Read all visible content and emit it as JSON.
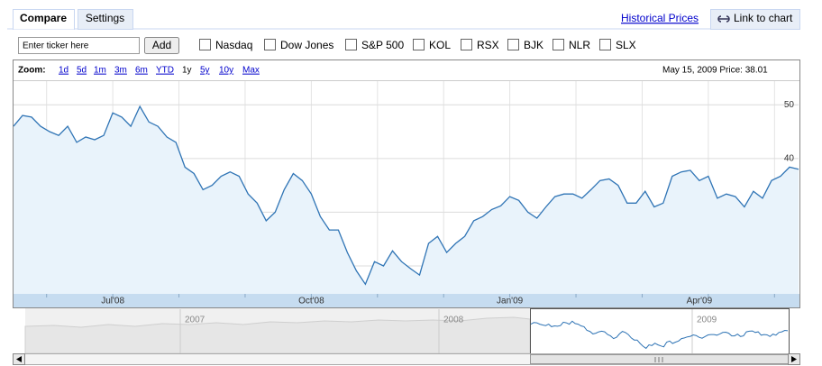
{
  "tabs": [
    "Compare",
    "Settings"
  ],
  "links": {
    "historical": "Historical Prices",
    "link_to_chart": "Link to chart"
  },
  "ticker_input": {
    "placeholder": "Enter ticker here",
    "button": "Add"
  },
  "compare_options": [
    "Nasdaq",
    "Dow Jones",
    "S&P 500",
    "KOL",
    "RSX",
    "BJK",
    "NLR",
    "SLX"
  ],
  "zoom": {
    "label": "Zoom:",
    "options": [
      "1d",
      "5d",
      "1m",
      "3m",
      "6m",
      "YTD",
      "1y",
      "5y",
      "10y",
      "Max"
    ]
  },
  "status": "May 15, 2009 Price: 38.01",
  "navigator": {
    "labels": [
      "2007",
      "2008",
      "2009"
    ]
  },
  "chart_data": {
    "type": "line",
    "categories": [
      null,
      null,
      null,
      null,
      null,
      null,
      null,
      null,
      null,
      null,
      null,
      "Jul'08",
      null,
      null,
      null,
      null,
      null,
      null,
      null,
      null,
      null,
      null,
      null,
      null,
      null,
      null,
      null,
      null,
      null,
      null,
      null,
      null,
      null,
      "Oct'08",
      null,
      null,
      null,
      null,
      null,
      null,
      null,
      null,
      null,
      null,
      null,
      null,
      null,
      null,
      null,
      null,
      null,
      null,
      null,
      null,
      null,
      "Jan'09",
      null,
      null,
      null,
      null,
      null,
      null,
      null,
      null,
      null,
      null,
      null,
      null,
      null,
      null,
      null,
      null,
      null,
      null,
      null,
      null,
      "Apr'09",
      null,
      null,
      null,
      null,
      null,
      null,
      null,
      null,
      null,
      null,
      null
    ],
    "values": [
      46,
      48,
      47.7,
      46,
      45,
      44.3,
      46,
      43,
      44,
      43.5,
      44.3,
      48.5,
      47.7,
      46,
      49.7,
      46.8,
      46,
      44,
      43,
      38.4,
      37.2,
      34.2,
      35,
      36.7,
      37.5,
      36.7,
      33.4,
      31.7,
      28.4,
      30,
      34.2,
      37.2,
      35.9,
      33.4,
      29.2,
      26.7,
      26.7,
      22.5,
      19.1,
      16.6,
      20.8,
      20,
      22.8,
      20.8,
      19.5,
      18.3,
      24.2,
      25.5,
      22.5,
      24.2,
      25.5,
      28.4,
      29.2,
      30.5,
      31.2,
      32.9,
      32.2,
      30,
      28.9,
      31,
      32.9,
      33.4,
      33.4,
      32.6,
      34.2,
      35.9,
      36.2,
      35,
      31.7,
      31.7,
      33.9,
      31,
      31.7,
      36.7,
      37.5,
      37.8,
      35.9,
      36.7,
      32.6,
      33.4,
      32.9,
      31,
      33.9,
      32.6,
      35.9,
      36.7,
      38.4,
      38
    ],
    "color": "#2f74b5",
    "ylim": [
      14.8,
      54.4
    ],
    "yticks": [
      20,
      30,
      40,
      50
    ],
    "grid": true
  }
}
